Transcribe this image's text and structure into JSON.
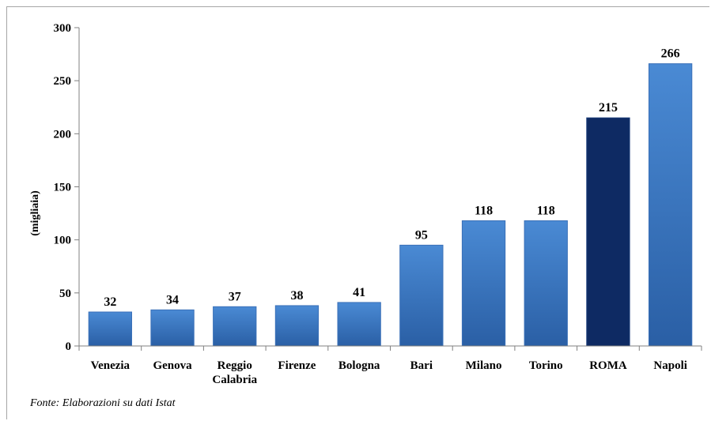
{
  "chart_data": {
    "type": "bar",
    "categories": [
      [
        "Venezia"
      ],
      [
        "Genova"
      ],
      [
        "Reggio",
        "Calabria"
      ],
      [
        "Firenze"
      ],
      [
        "Bologna"
      ],
      [
        "Bari"
      ],
      [
        "Milano"
      ],
      [
        "Torino"
      ],
      [
        "ROMA"
      ],
      [
        "Napoli"
      ]
    ],
    "values": [
      32,
      34,
      37,
      38,
      41,
      95,
      118,
      118,
      215,
      266
    ],
    "data_labels": [
      "32",
      "34",
      "37",
      "38",
      "41",
      "95",
      "118",
      "118",
      "215",
      "266"
    ],
    "highlight_index": 8,
    "ylabel": "(migliaia)",
    "ylim": [
      0,
      300
    ],
    "yticks": [
      0,
      50,
      100,
      150,
      200,
      250,
      300
    ],
    "grid": false,
    "colors": {
      "bar_top": "#4a8ad4",
      "bar_bottom": "#2a5fa5",
      "highlight": "#0e2a63",
      "highlight_border": "#1b3d7a",
      "bar_border": "#3a70b8"
    }
  },
  "source": "Fonte: Elaborazioni su dati Istat"
}
